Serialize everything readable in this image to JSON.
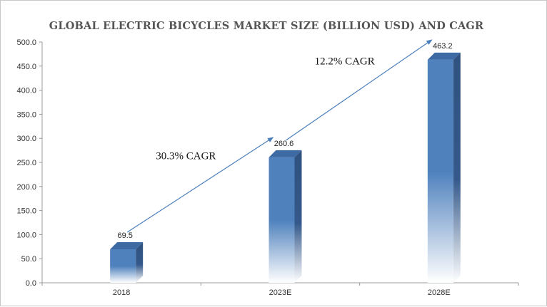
{
  "chart_data": {
    "type": "bar",
    "title": "GLOBAL ELECTRIC BICYCLES MARKET SIZE (BILLION USD) AND CAGR",
    "xlabel": "",
    "ylabel": "",
    "categories": [
      "2018",
      "2023E",
      "2028E"
    ],
    "values": [
      69.5,
      260.6,
      463.2
    ],
    "value_labels": [
      "69.5",
      "260.6",
      "463.2"
    ],
    "ylim": [
      0,
      500
    ],
    "yticks": [
      "0.0",
      "50.0",
      "100.0",
      "150.0",
      "200.0",
      "250.0",
      "300.0",
      "350.0",
      "400.0",
      "450.0",
      "500.0"
    ],
    "grid": false,
    "annotations": [
      {
        "text": "30.3% CAGR",
        "from_category": "2018",
        "to_category": "2023E"
      },
      {
        "text": "12.2% CAGR",
        "from_category": "2023E",
        "to_category": "2028E"
      }
    ],
    "colors": {
      "bar_front": "#4f81bd",
      "bar_side": "#2f527f",
      "bar_top": "#3d6aa3",
      "arrow": "#4a7ebb",
      "axis": "#9a9a9a"
    }
  }
}
